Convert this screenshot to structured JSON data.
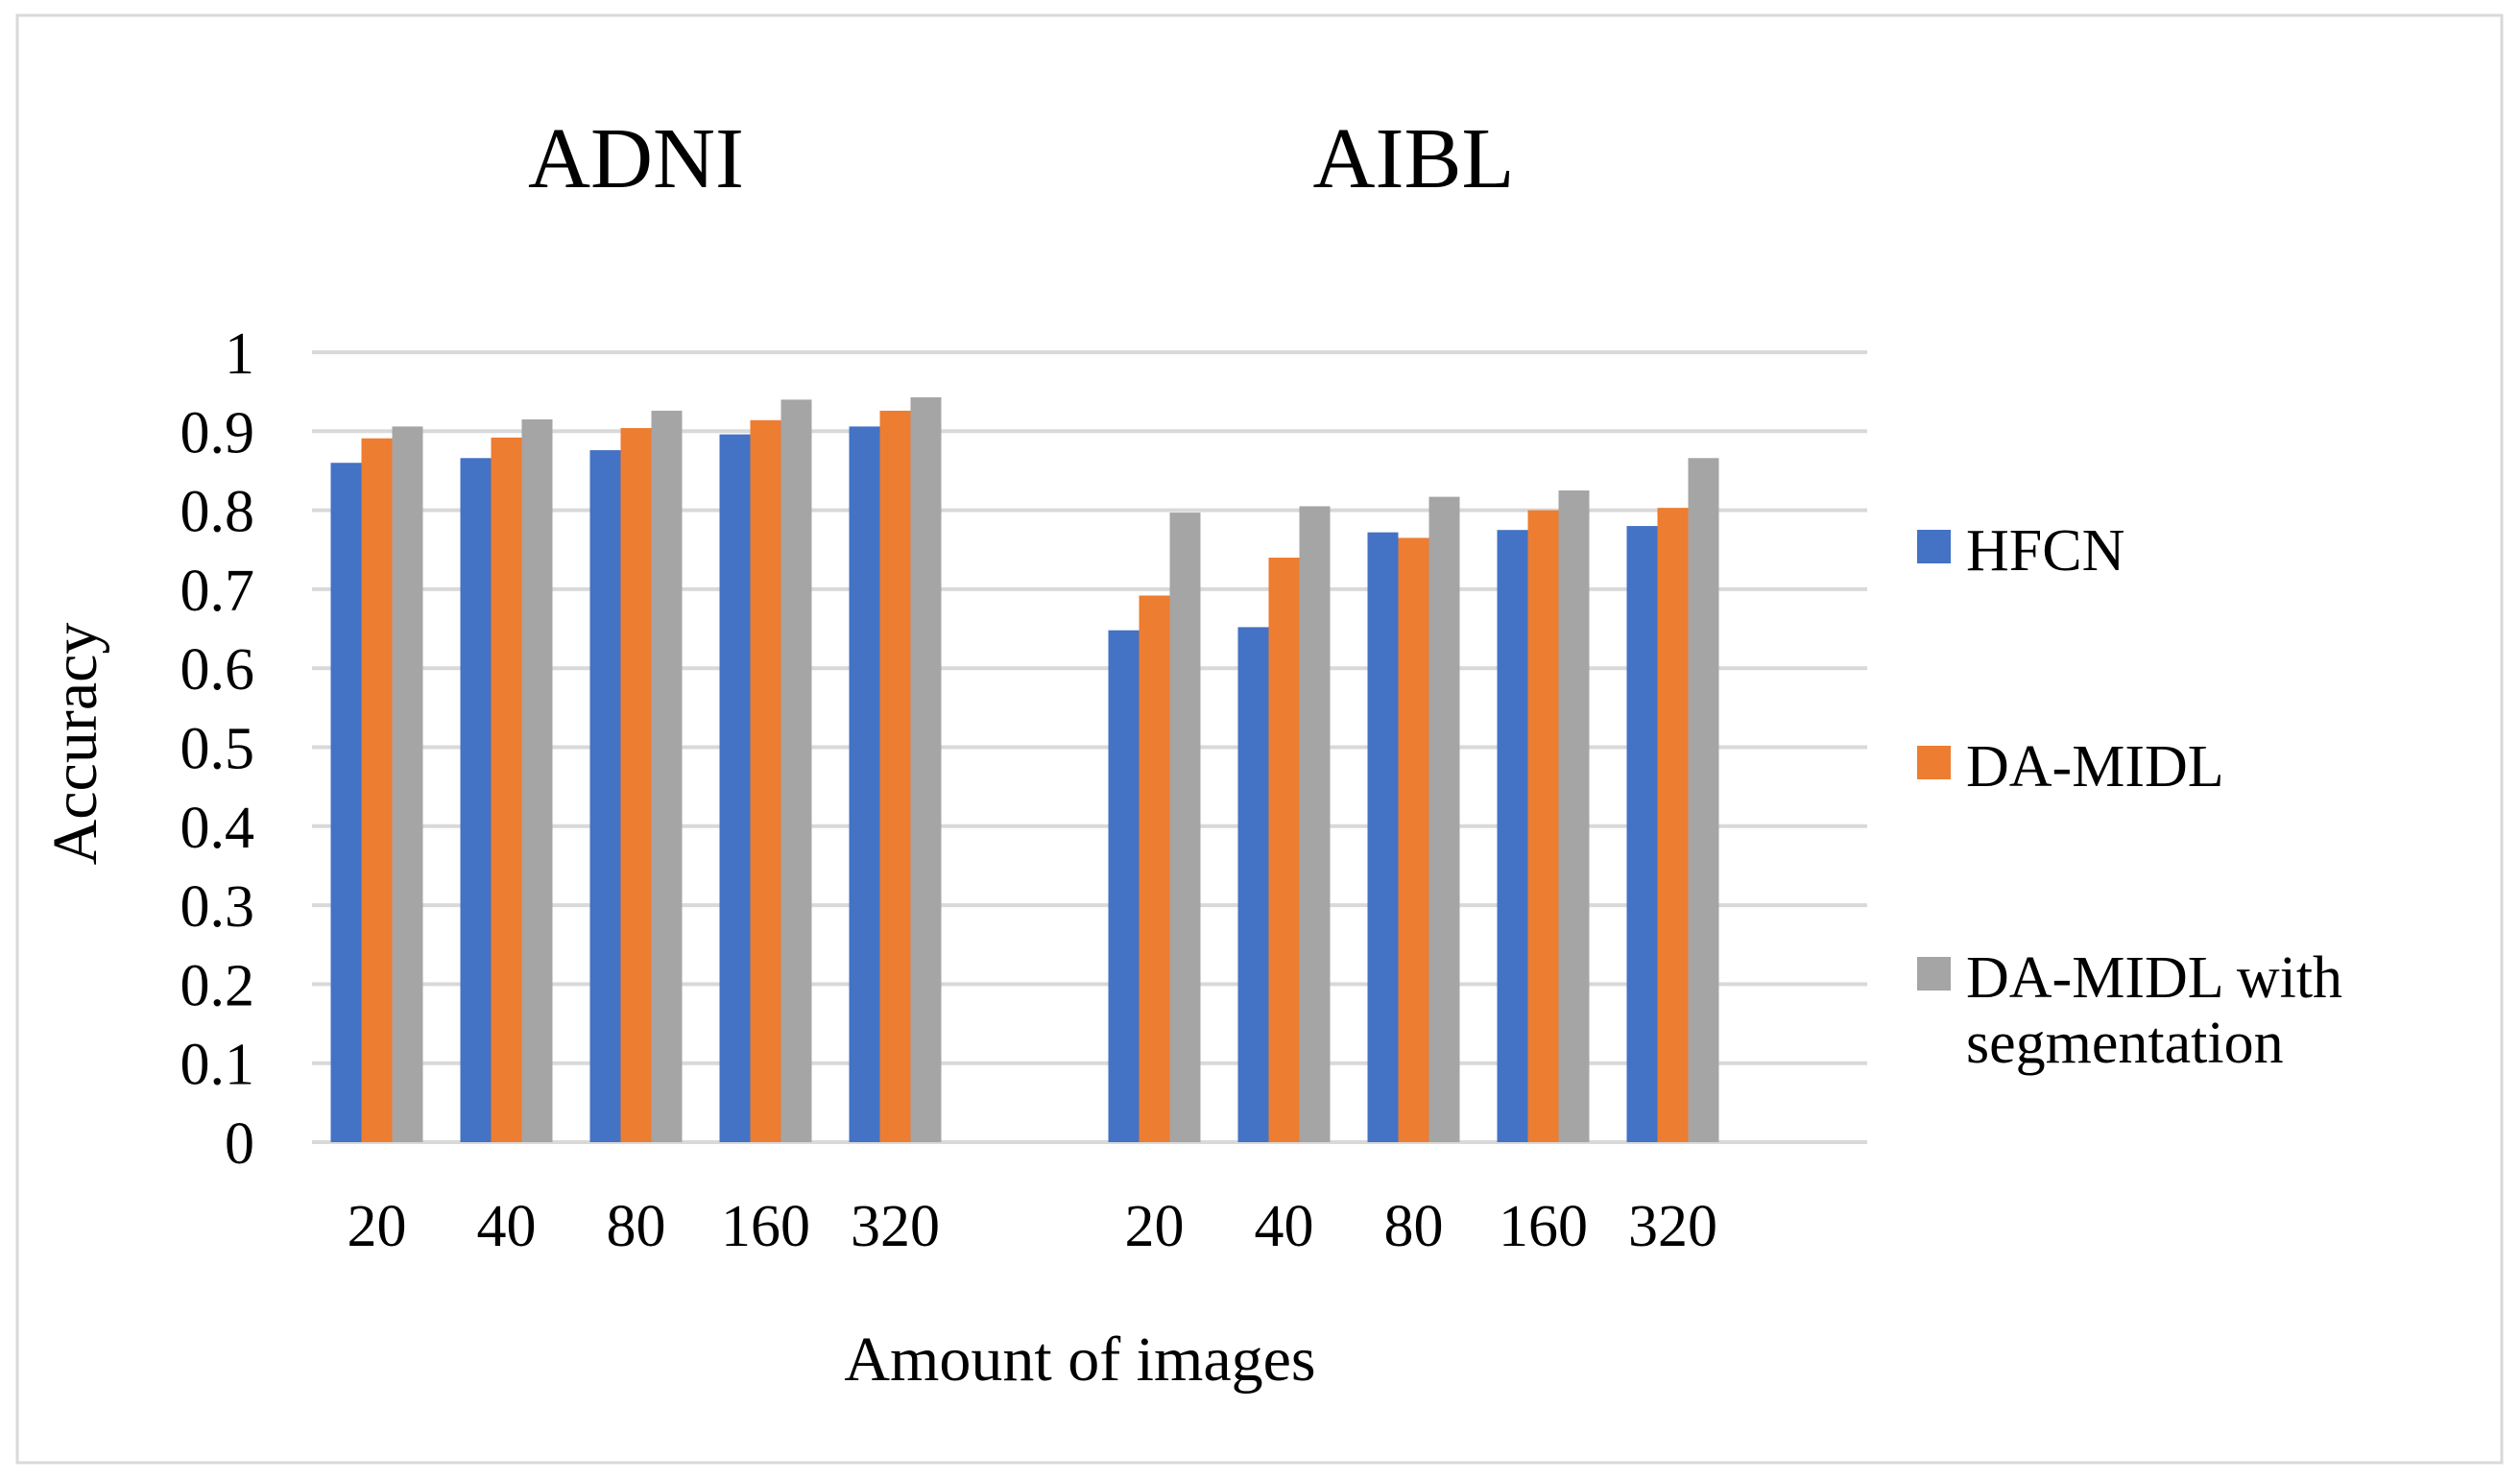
{
  "chart_data": {
    "type": "bar",
    "ylabel": "Accuracy",
    "xlabel": "Amount of images",
    "ylim": [
      0,
      1
    ],
    "yticks": [
      "0",
      "0.1",
      "0.2",
      "0.3",
      "0.4",
      "0.5",
      "0.6",
      "0.7",
      "0.8",
      "0.9",
      "1"
    ],
    "grid": true,
    "legend_position": "right",
    "colors": [
      "#4472C4",
      "#ED7D31",
      "#A5A5A5"
    ],
    "groups": [
      {
        "name": "ADNI",
        "categories": [
          "20",
          "40",
          "80",
          "160",
          "320"
        ],
        "series": [
          {
            "name": "HFCN",
            "values": [
              0.86,
              0.866,
              0.876,
              0.896,
              0.906
            ]
          },
          {
            "name": "DA-MIDL",
            "values": [
              0.891,
              0.892,
              0.904,
              0.914,
              0.926
            ]
          },
          {
            "name": "DA-MIDL with segmentation",
            "values": [
              0.906,
              0.915,
              0.926,
              0.94,
              0.943
            ]
          }
        ]
      },
      {
        "name": "AIBL",
        "categories": [
          "20",
          "40",
          "80",
          "160",
          "320"
        ],
        "series": [
          {
            "name": "HFCN",
            "values": [
              0.648,
              0.652,
              0.772,
              0.775,
              0.78
            ]
          },
          {
            "name": "DA-MIDL",
            "values": [
              0.692,
              0.74,
              0.765,
              0.8,
              0.803
            ]
          },
          {
            "name": "DA-MIDL with segmentation",
            "values": [
              0.797,
              0.805,
              0.817,
              0.825,
              0.866
            ]
          }
        ]
      }
    ],
    "legend": [
      {
        "line1": "HFCN",
        "line2": ""
      },
      {
        "line1": "DA-MIDL",
        "line2": ""
      },
      {
        "line1": "DA-MIDL with",
        "line2": "segmentation"
      }
    ]
  }
}
